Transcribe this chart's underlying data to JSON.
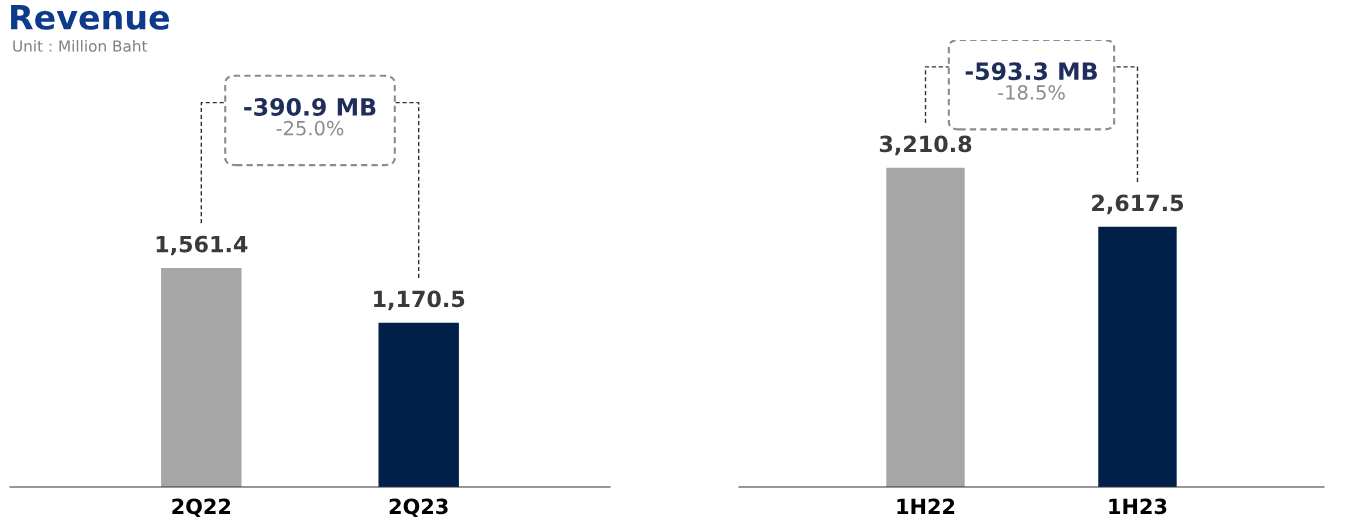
{
  "chart_data": [
    {
      "type": "bar",
      "title": "Revenue",
      "subtitle": "Unit : Million Baht",
      "categories": [
        "2Q22",
        "2Q23"
      ],
      "values": [
        1561.4,
        1170.5
      ],
      "value_labels": [
        "1,561.4",
        "1,170.5"
      ],
      "colors": [
        "#a6a6a6",
        "#00204a"
      ],
      "tick_labels": "x",
      "annotations": [
        "-390.9 MB",
        "-25.0%"
      ]
    },
    {
      "type": "bar",
      "categories": [
        "1H22",
        "1H23"
      ],
      "values": [
        3210.8,
        2617.5
      ],
      "value_labels": [
        "3,210.8",
        "2,617.5"
      ],
      "colors": [
        "#a6a6a6",
        "#00204a"
      ],
      "tick_labels": "x",
      "annotations": [
        "-593.3 MB",
        "-18.5%"
      ]
    }
  ]
}
